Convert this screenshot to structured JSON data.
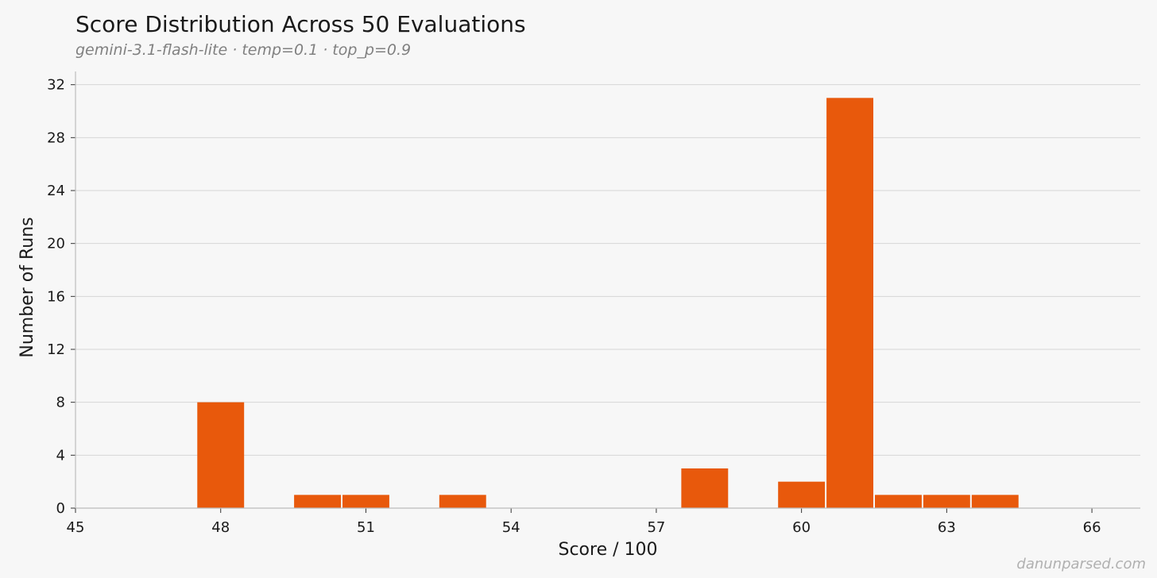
{
  "chart_data": {
    "type": "bar",
    "title": "Score Distribution Across 50 Evaluations",
    "subtitle": "gemini-3.1-flash-lite · temp=0.1 · top_p=0.9",
    "xlabel": "Score / 100",
    "ylabel": "Number of Runs",
    "xlim": [
      45,
      67
    ],
    "ylim": [
      0,
      33
    ],
    "x_ticks": [
      45,
      48,
      51,
      54,
      57,
      60,
      63,
      66
    ],
    "y_ticks": [
      0,
      4,
      8,
      12,
      16,
      20,
      24,
      28,
      32
    ],
    "grid": "horizontal",
    "bar_color": "#e8590c",
    "x": [
      48,
      50,
      51,
      53,
      58,
      60,
      61,
      62,
      63,
      64
    ],
    "values": [
      8,
      1,
      1,
      1,
      3,
      2,
      31,
      1,
      1,
      1
    ]
  },
  "watermark": "danunparsed.com"
}
